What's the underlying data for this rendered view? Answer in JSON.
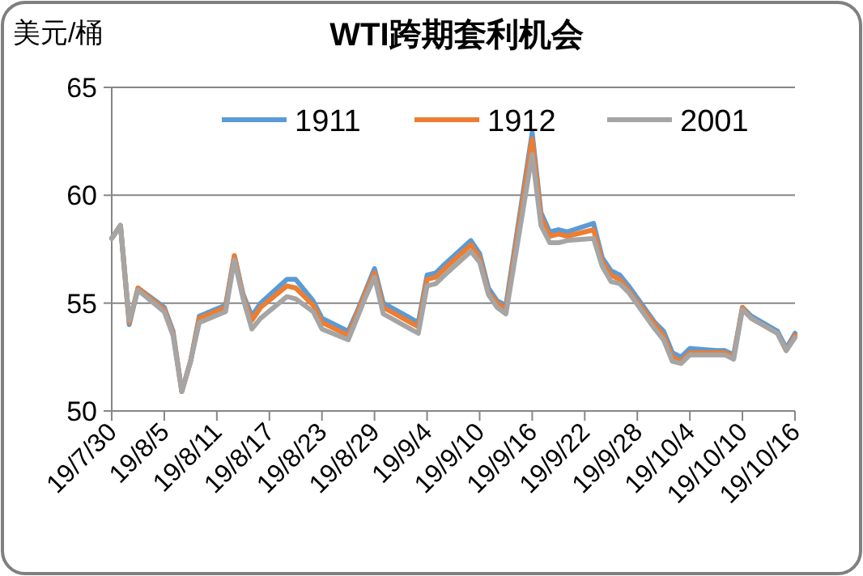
{
  "chart_data": {
    "type": "line",
    "title": "WTI跨期套利机会",
    "ylabel": "美元/桶",
    "x": [
      "--07-30",
      "--07-31",
      "--08-01",
      "--08-02",
      "--08-05",
      "--08-06",
      "--08-07",
      "--08-08",
      "--08-09",
      "--08-12",
      "--08-13",
      "--08-14",
      "--08-15",
      "--08-16",
      "--08-19",
      "--08-20",
      "--08-21",
      "--08-22",
      "--08-23",
      "--08-26",
      "--08-27",
      "--08-28",
      "--08-29",
      "--08-30",
      "--09-03",
      "--09-04",
      "--09-05",
      "--09-06",
      "--09-09",
      "--09-10",
      "--09-11",
      "--09-12",
      "--09-13",
      "--09-16",
      "--09-17",
      "--09-18",
      "--09-19",
      "--09-20",
      "--09-23",
      "--09-24",
      "--09-25",
      "--09-26",
      "--09-27",
      "--09-30",
      "--10-01",
      "--10-02",
      "--10-03",
      "--10-04",
      "--10-07",
      "--10-08",
      "--10-09",
      "--10-10",
      "--10-11",
      "--10-14",
      "--10-15",
      "--10-16"
    ],
    "series": [
      {
        "name": "1911",
        "color": "#5b9bd5",
        "values": [
          58.0,
          58.6,
          54.0,
          55.7,
          54.8,
          53.7,
          50.9,
          52.3,
          54.4,
          54.9,
          57.2,
          55.4,
          54.4,
          55.0,
          56.1,
          56.1,
          55.6,
          55.1,
          54.3,
          53.7,
          54.6,
          55.6,
          56.6,
          55.0,
          54.1,
          56.3,
          56.4,
          56.8,
          57.9,
          57.3,
          55.7,
          55.1,
          54.9,
          62.9,
          59.2,
          58.3,
          58.4,
          58.3,
          58.7,
          57.1,
          56.5,
          56.3,
          55.8,
          54.1,
          53.7,
          52.7,
          52.5,
          52.9,
          52.8,
          52.8,
          52.6,
          54.8,
          54.4,
          53.7,
          52.9,
          53.6
        ]
      },
      {
        "name": "1912",
        "color": "#ed7d31",
        "values": [
          58.0,
          58.6,
          54.1,
          55.7,
          54.7,
          53.6,
          50.9,
          52.3,
          54.3,
          54.8,
          57.2,
          55.3,
          54.2,
          54.8,
          55.8,
          55.7,
          55.3,
          54.9,
          54.1,
          53.5,
          54.5,
          55.5,
          56.4,
          54.8,
          53.9,
          56.1,
          56.2,
          56.6,
          57.7,
          57.1,
          55.5,
          55.0,
          54.7,
          62.6,
          59.0,
          58.1,
          58.2,
          58.1,
          58.4,
          56.9,
          56.3,
          56.1,
          55.6,
          54.0,
          53.5,
          52.5,
          52.3,
          52.7,
          52.7,
          52.7,
          52.5,
          54.8,
          54.3,
          53.6,
          52.8,
          53.5
        ]
      },
      {
        "name": "2001",
        "color": "#a5a5a5",
        "values": [
          58.0,
          58.6,
          54.2,
          55.6,
          54.6,
          53.5,
          50.9,
          52.3,
          54.1,
          54.6,
          57.0,
          55.2,
          53.8,
          54.3,
          55.3,
          55.2,
          54.9,
          54.6,
          53.8,
          53.3,
          54.3,
          55.3,
          56.2,
          54.5,
          53.6,
          55.8,
          55.9,
          56.3,
          57.4,
          56.9,
          55.4,
          54.8,
          54.5,
          61.9,
          58.6,
          57.8,
          57.8,
          57.9,
          58.0,
          56.7,
          56.0,
          55.9,
          55.5,
          53.8,
          53.3,
          52.3,
          52.2,
          52.6,
          52.6,
          52.6,
          52.4,
          54.7,
          54.3,
          53.6,
          52.8,
          53.4
        ]
      }
    ],
    "xlim": [
      "--07-30",
      "--10-16"
    ],
    "xticks": [
      {
        "value": "--07-30",
        "label": "19/7/30"
      },
      {
        "value": "--08-05",
        "label": "19/8/5"
      },
      {
        "value": "--08-11",
        "label": "19/8/11"
      },
      {
        "value": "--08-17",
        "label": "19/8/17"
      },
      {
        "value": "--08-23",
        "label": "19/8/23"
      },
      {
        "value": "--08-29",
        "label": "19/8/29"
      },
      {
        "value": "--09-04",
        "label": "19/9/4"
      },
      {
        "value": "--09-10",
        "label": "19/9/10"
      },
      {
        "value": "--09-16",
        "label": "19/9/16"
      },
      {
        "value": "--09-22",
        "label": "19/9/22"
      },
      {
        "value": "--09-28",
        "label": "19/9/28"
      },
      {
        "value": "--10-04",
        "label": "19/10/4"
      },
      {
        "value": "--10-10",
        "label": "19/10/10"
      },
      {
        "value": "--10-16",
        "label": "19/10/16"
      }
    ],
    "ylim": [
      50,
      65
    ],
    "yticks": [
      50,
      55,
      60,
      65
    ],
    "grid": "y",
    "legend": "top",
    "marker": "none",
    "line_style": "solid"
  }
}
